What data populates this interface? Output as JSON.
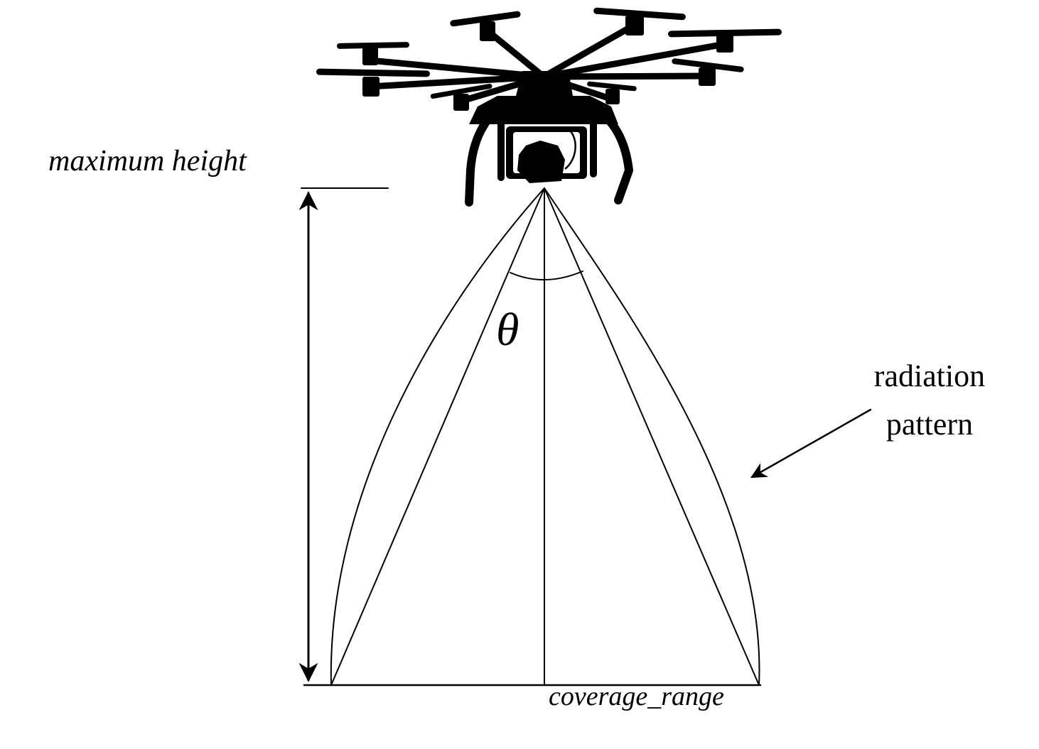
{
  "labels": {
    "max_height": "maximum height",
    "theta": "θ",
    "radiation_line1": "radiation",
    "radiation_line2": "pattern",
    "coverage": "coverage_range"
  },
  "colors": {
    "ink": "#000000",
    "background": "#ffffff"
  },
  "icons": {
    "drone": "octocopter-drone-icon"
  }
}
